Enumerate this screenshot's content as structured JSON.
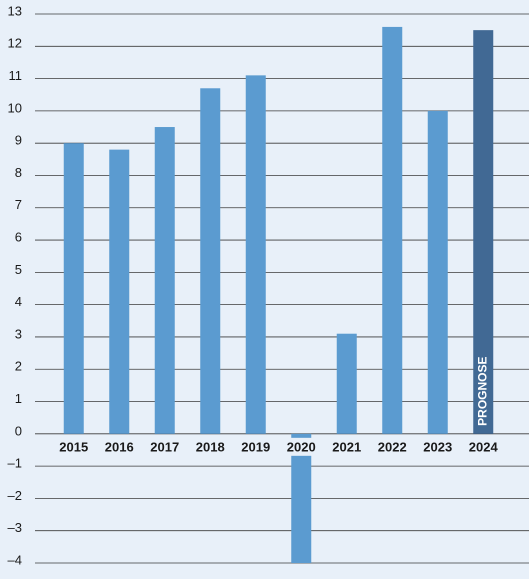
{
  "chart_data": {
    "type": "bar",
    "categories": [
      "2015",
      "2016",
      "2017",
      "2018",
      "2019",
      "2020",
      "2021",
      "2022",
      "2023",
      "2024"
    ],
    "values": [
      9.0,
      8.8,
      9.5,
      10.7,
      11.1,
      -4.0,
      3.1,
      12.6,
      10.0,
      12.5
    ],
    "colors": [
      "#5b9bd0",
      "#5b9bd0",
      "#5b9bd0",
      "#5b9bd0",
      "#5b9bd0",
      "#5b9bd0",
      "#5b9bd0",
      "#5b9bd0",
      "#5b9bd0",
      "#416994"
    ],
    "annotation": "PROGNOSE",
    "ylim": [
      -4,
      13
    ],
    "yticks": [
      {
        "value": -4,
        "label": "–4"
      },
      {
        "value": -3,
        "label": "–3"
      },
      {
        "value": -2,
        "label": "–2"
      },
      {
        "value": -1,
        "label": "–1"
      },
      0,
      1,
      2,
      3,
      4,
      5,
      6,
      7,
      8,
      9,
      10,
      11,
      12,
      13
    ],
    "grid": true
  }
}
